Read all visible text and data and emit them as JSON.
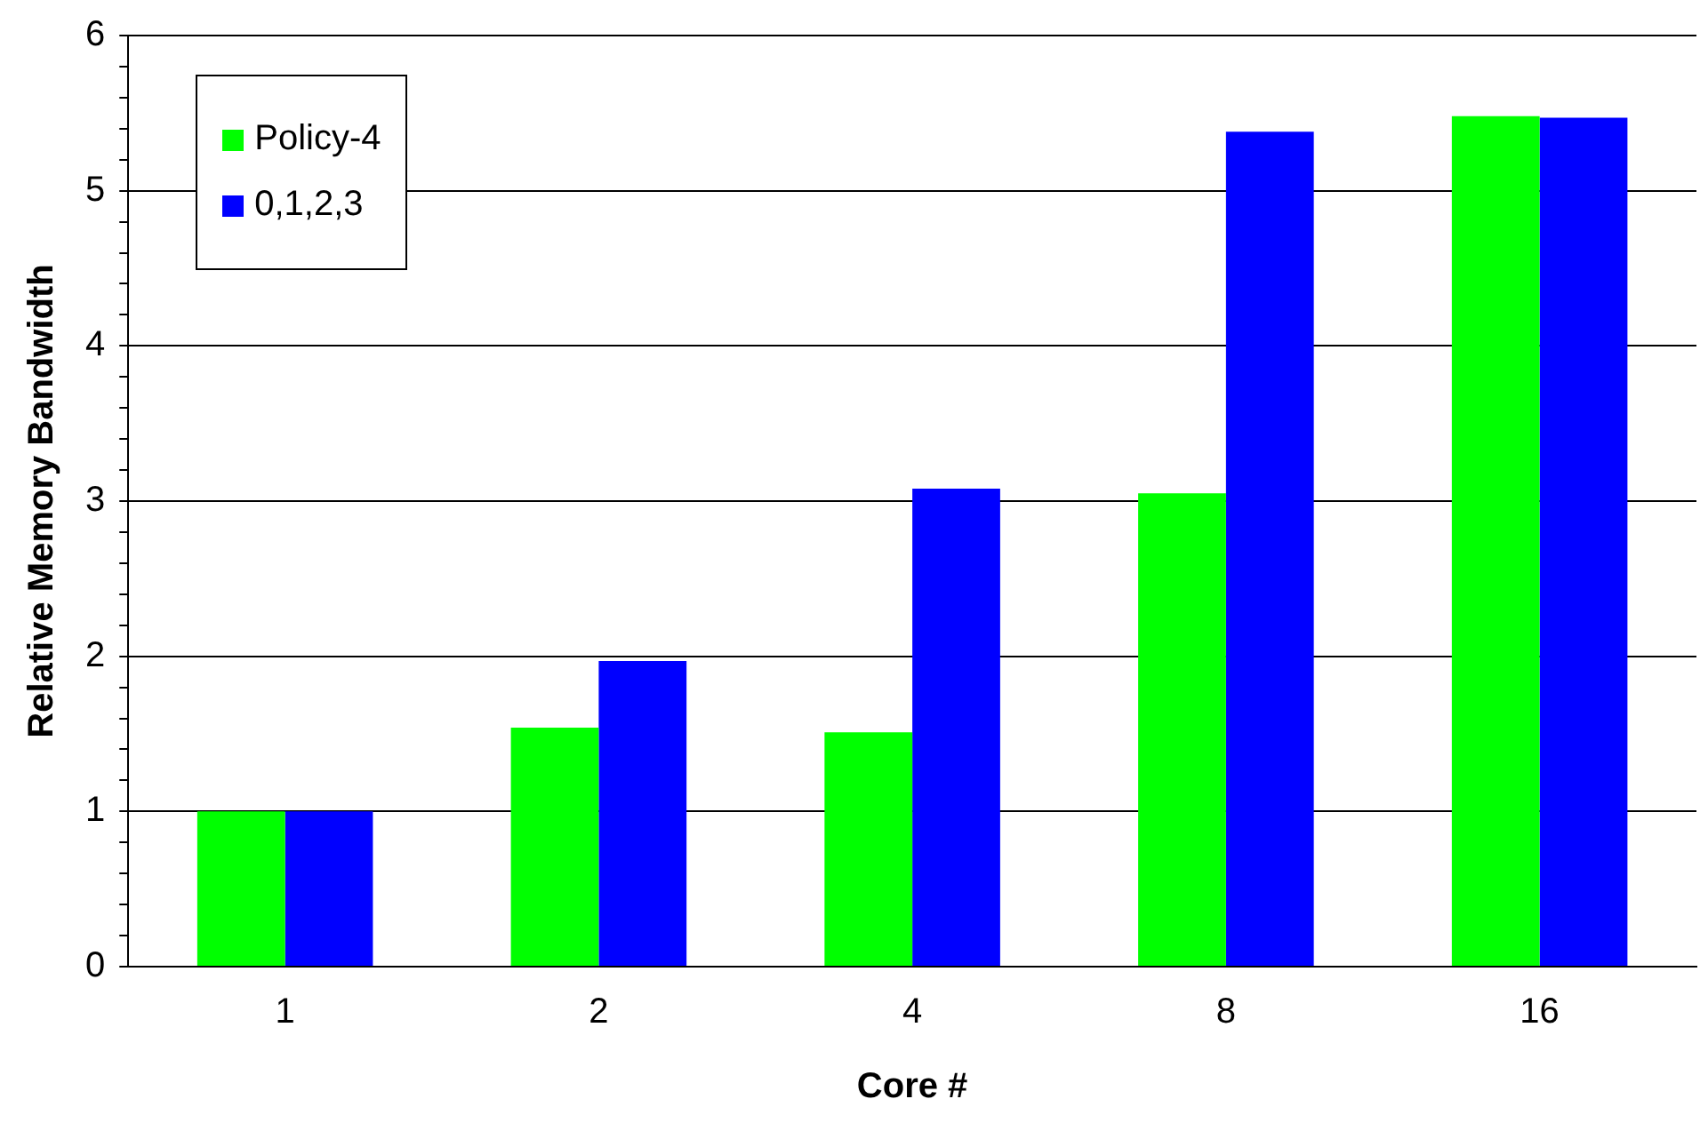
{
  "chart_data": {
    "type": "bar",
    "xlabel": "Core #",
    "ylabel": "Relative Memory Bandwidth",
    "categories": [
      "1",
      "2",
      "4",
      "8",
      "16"
    ],
    "series": [
      {
        "name": "Policy-4",
        "color": "#00ff00",
        "values": [
          1.0,
          1.54,
          1.51,
          3.05,
          5.48
        ]
      },
      {
        "name": "0,1,2,3",
        "color": "#0000ff",
        "values": [
          1.0,
          1.97,
          3.08,
          5.38,
          5.47
        ]
      }
    ],
    "ylim": [
      0,
      6
    ],
    "yticks": [
      0,
      {
        "value": 0.2,
        "label": null
      },
      {
        "value": 0.4,
        "label": null
      },
      {
        "value": 0.6,
        "label": null
      },
      {
        "value": 0.8,
        "label": null
      },
      1,
      {
        "value": 1.2,
        "label": null
      },
      {
        "value": 1.4,
        "label": null
      },
      {
        "value": 1.6,
        "label": null
      },
      {
        "value": 1.8,
        "label": null
      },
      2,
      {
        "value": 2.2,
        "label": null
      },
      {
        "value": 2.4,
        "label": null
      },
      {
        "value": 2.6,
        "label": null
      },
      {
        "value": 2.8,
        "label": null
      },
      3,
      {
        "value": 3.2,
        "label": null
      },
      {
        "value": 3.4,
        "label": null
      },
      {
        "value": 3.6,
        "label": null
      },
      {
        "value": 3.8,
        "label": null
      },
      4,
      {
        "value": 4.2,
        "label": null
      },
      {
        "value": 4.4,
        "label": null
      },
      {
        "value": 4.6,
        "label": null
      },
      {
        "value": 4.8,
        "label": null
      },
      5,
      {
        "value": 5.2,
        "label": null
      },
      {
        "value": 5.4,
        "label": null
      },
      {
        "value": 5.6,
        "label": null
      },
      {
        "value": 5.8,
        "label": null
      },
      6
    ],
    "grid": "y",
    "legend": "top left"
  }
}
